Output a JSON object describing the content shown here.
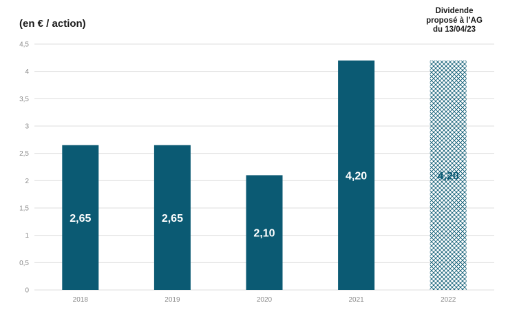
{
  "chart_data": {
    "type": "bar",
    "unit_label": "(en € / action)",
    "categories": [
      "2018",
      "2019",
      "2020",
      "2021",
      "2022"
    ],
    "values": [
      2.65,
      2.65,
      2.1,
      4.2,
      4.2
    ],
    "data_labels": [
      "2,65",
      "2,65",
      "2,10",
      "4,20",
      "4,20"
    ],
    "ylim": [
      0,
      4.5
    ],
    "y_ticks": [
      0,
      0.5,
      1,
      1.5,
      2,
      2.5,
      3,
      3.5,
      4,
      4.5
    ],
    "y_tick_labels": [
      "0",
      "0,5",
      "1",
      "1,5",
      "2",
      "2,5",
      "3",
      "3,5",
      "4",
      "4,5"
    ],
    "grid": true,
    "proposed_index": 4,
    "annotation_lines": [
      "Dividende",
      "proposé à l’AG",
      "du 13/04/23"
    ],
    "colors": {
      "bar": "#0b5a73",
      "hatch": "#0b5a73",
      "label_on_bar": "#ffffff",
      "label_on_hatch": "#0b5a73",
      "grid": "#dcdcdc",
      "tick_text": "#8a8a8a"
    }
  }
}
